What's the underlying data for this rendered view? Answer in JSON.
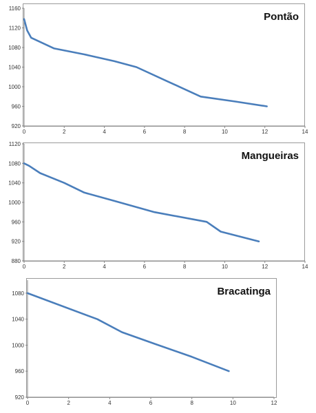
{
  "chart_data": [
    {
      "type": "line",
      "title": "Pontão",
      "xlim": [
        0,
        14
      ],
      "ylim": [
        920,
        1160
      ],
      "xticks": [
        "0",
        "2",
        "4",
        "6",
        "8",
        "10",
        "12",
        "14"
      ],
      "yticks": [
        "920",
        "960",
        "1000",
        "1040",
        "1080",
        "1120",
        "1160"
      ],
      "series": [
        {
          "x": [
            0,
            0.15,
            0.35,
            1.5,
            3.0,
            4.5,
            5.6,
            7.2,
            8.8,
            10.5,
            12.1
          ],
          "y": [
            1138,
            1115,
            1100,
            1078,
            1066,
            1052,
            1040,
            1010,
            980,
            970,
            960
          ]
        }
      ],
      "grid": false,
      "legend": "none"
    },
    {
      "type": "line",
      "title": "Mangueiras",
      "xlim": [
        0,
        14
      ],
      "ylim": [
        880,
        1120
      ],
      "xticks": [
        "0",
        "2",
        "4",
        "6",
        "8",
        "10",
        "12",
        "14"
      ],
      "yticks": [
        "880",
        "920",
        "960",
        "1000",
        "1040",
        "1080",
        "1120"
      ],
      "series": [
        {
          "x": [
            0,
            0.25,
            0.8,
            2.0,
            3.0,
            4.5,
            6.5,
            9.1,
            9.8,
            11.7
          ],
          "y": [
            1080,
            1075,
            1060,
            1040,
            1020,
            1003,
            980,
            960,
            940,
            920
          ]
        }
      ],
      "grid": false,
      "legend": "none"
    },
    {
      "type": "line",
      "title": "Bracatinga",
      "xlim": [
        0,
        12
      ],
      "ylim": [
        920,
        1100
      ],
      "xticks": [
        "0",
        "2",
        "4",
        "6",
        "8",
        "10",
        "12"
      ],
      "yticks": [
        "920",
        "960",
        "1000",
        "1040",
        "1080"
      ],
      "series": [
        {
          "x": [
            0,
            3.4,
            4.6,
            6.2,
            8.0,
            9.8
          ],
          "y": [
            1080,
            1040,
            1020,
            1002,
            982,
            960
          ]
        }
      ],
      "grid": false,
      "legend": "none"
    }
  ],
  "colors": {
    "line": "#4a7ebb",
    "axis": "#888888",
    "text": "#333333"
  }
}
